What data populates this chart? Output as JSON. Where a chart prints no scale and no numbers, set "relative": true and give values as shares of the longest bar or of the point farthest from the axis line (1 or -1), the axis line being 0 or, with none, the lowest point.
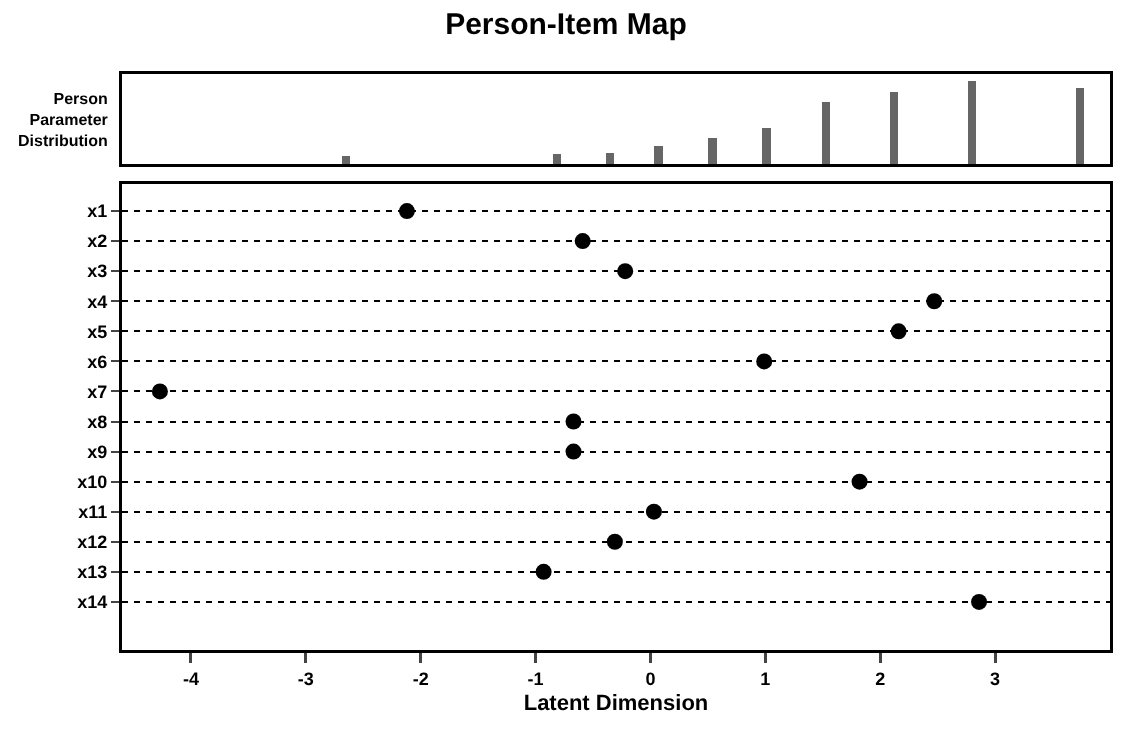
{
  "chart_data": [
    {
      "type": "bar",
      "title": "Person-Item Map",
      "ylabel": "Person Parameter Distribution",
      "relative": true,
      "tick_labels": false,
      "color": "#666666",
      "xlim": [
        -4.6,
        4.0
      ],
      "x": [
        -2.65,
        -0.81,
        -0.35,
        0.07,
        0.54,
        1.01,
        1.53,
        2.12,
        2.8,
        3.74
      ],
      "values": [
        0.1,
        0.12,
        0.13,
        0.22,
        0.31,
        0.43,
        0.75,
        0.87,
        1,
        0.91
      ]
    },
    {
      "type": "scatter",
      "orientation": "horizontal",
      "xlabel": "Latent Dimension",
      "grid": "y",
      "marker": "circle",
      "color": "#000000",
      "xlim": [
        -4.6,
        4.0
      ],
      "xticks": [
        -4,
        -3,
        -2,
        -1,
        0,
        1,
        2,
        3
      ],
      "categories": [
        "x1",
        "x2",
        "x3",
        "x4",
        "x5",
        "x6",
        "x7",
        "x8",
        "x9",
        "x10",
        "x11",
        "x12",
        "x13",
        "x14"
      ],
      "values": [
        -2.12,
        -0.59,
        -0.22,
        2.47,
        2.16,
        0.99,
        -4.27,
        -0.67,
        -0.67,
        1.82,
        0.03,
        -0.31,
        -0.93,
        2.86
      ]
    }
  ]
}
